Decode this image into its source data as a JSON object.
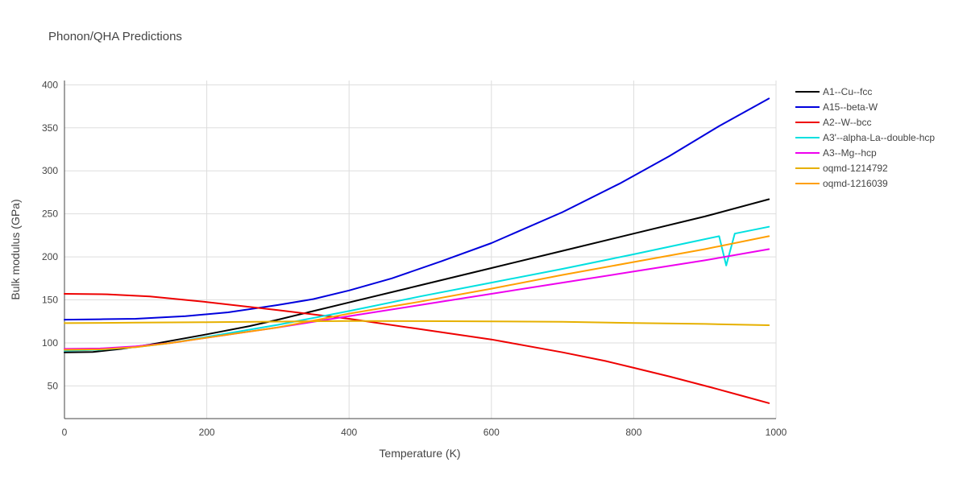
{
  "chart_data": {
    "type": "line",
    "title": "Phonon/QHA Predictions",
    "xlabel": "Temperature (K)",
    "ylabel": "Bulk modulus (GPa)",
    "xlim": [
      0,
      1000
    ],
    "ylim": [
      12,
      405
    ],
    "xticks": [
      0,
      200,
      400,
      600,
      800,
      1000
    ],
    "yticks": [
      50,
      100,
      150,
      200,
      250,
      300,
      350,
      400
    ],
    "grid": true,
    "legend": "top-right, outside plot",
    "series": [
      {
        "name": "A1--Cu--fcc",
        "color": "#000000",
        "x": [
          0,
          40,
          80,
          120,
          160,
          200,
          260,
          300,
          350,
          400,
          500,
          600,
          700,
          800,
          900,
          990
        ],
        "y": [
          89,
          89.5,
          93,
          98,
          104,
          110,
          119.5,
          127,
          137,
          147,
          167,
          187,
          207,
          227,
          247,
          267
        ]
      },
      {
        "name": "A15--beta-W",
        "color": "#0000dd",
        "x": [
          0,
          50,
          100,
          170,
          230,
          300,
          350,
          400,
          460,
          530,
          600,
          700,
          780,
          850,
          920,
          990
        ],
        "y": [
          127,
          127.5,
          128,
          131,
          135.5,
          144,
          151,
          161,
          175,
          195,
          216,
          252,
          285,
          317,
          352,
          384
        ]
      },
      {
        "name": "A2--W--bcc",
        "color": "#ee0000",
        "x": [
          0,
          60,
          120,
          200,
          300,
          400,
          500,
          600,
          700,
          760,
          800,
          850,
          910,
          950,
          990
        ],
        "y": [
          157,
          156.5,
          154,
          147.5,
          138,
          128,
          116,
          104,
          89,
          79,
          71,
          61,
          48,
          39,
          30
        ]
      },
      {
        "name": "A3'--alpha-La--double-hcp",
        "color": "#00e0e0",
        "x": [
          0,
          50,
          100,
          150,
          200,
          300,
          400,
          500,
          600,
          700,
          800,
          880,
          920,
          930,
          942,
          990
        ],
        "y": [
          91,
          92,
          95,
          100,
          107,
          121,
          137,
          154,
          170,
          186,
          203,
          217,
          224,
          190,
          227,
          235
        ]
      },
      {
        "name": "A3--Mg--hcp",
        "color": "#ee00ee",
        "x": [
          0,
          50,
          100,
          150,
          200,
          300,
          400,
          500,
          600,
          700,
          800,
          900,
          990
        ],
        "y": [
          93,
          93.5,
          96,
          100,
          106,
          118,
          131,
          144,
          157,
          170,
          183,
          196,
          209
        ]
      },
      {
        "name": "oqmd-1214792",
        "color": "#e6b000",
        "x": [
          0,
          100,
          200,
          300,
          400,
          500,
          600,
          700,
          800,
          900,
          990
        ],
        "y": [
          123,
          123.5,
          124,
          124.8,
          125.5,
          125.3,
          125,
          124.5,
          123.2,
          122,
          120.5
        ]
      },
      {
        "name": "oqmd-1216039",
        "color": "#ff9f00",
        "x": [
          0,
          50,
          100,
          150,
          200,
          300,
          400,
          500,
          600,
          700,
          800,
          900,
          990
        ],
        "y": [
          92,
          92.5,
          95,
          100,
          106,
          118,
          134,
          148,
          163,
          179,
          194,
          209,
          224
        ]
      }
    ]
  }
}
